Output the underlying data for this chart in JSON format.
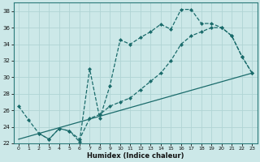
{
  "xlabel": "Humidex (Indice chaleur)",
  "background_color": "#cce8e8",
  "grid_color": "#b0d4d4",
  "line_color": "#1a6b6b",
  "xlim": [
    -0.5,
    23.5
  ],
  "ylim": [
    22,
    39
  ],
  "xticks": [
    0,
    1,
    2,
    3,
    4,
    5,
    6,
    7,
    8,
    9,
    10,
    11,
    12,
    13,
    14,
    15,
    16,
    17,
    18,
    19,
    20,
    21,
    22,
    23
  ],
  "yticks": [
    22,
    24,
    26,
    28,
    30,
    32,
    34,
    36,
    38
  ],
  "series1_x": [
    0,
    1,
    2,
    3,
    4,
    5,
    6,
    7,
    8,
    9,
    10,
    11,
    12,
    13,
    14,
    15,
    16,
    17,
    18,
    19,
    20,
    21,
    22,
    23
  ],
  "series1_y": [
    26.5,
    24.8,
    23.2,
    22.5,
    23.8,
    23.5,
    22.2,
    31.0,
    25.0,
    29.0,
    34.5,
    34.0,
    34.8,
    35.5,
    36.4,
    35.8,
    38.2,
    38.2,
    36.5,
    36.5,
    36.0,
    35.0,
    32.5,
    30.5
  ],
  "series2_x": [
    2,
    3,
    4,
    5,
    6,
    7,
    8,
    9,
    10,
    11,
    12,
    13,
    14,
    15,
    16,
    17,
    18,
    19,
    20,
    21,
    22,
    23
  ],
  "series2_y": [
    23.2,
    22.5,
    23.8,
    23.5,
    22.5,
    25.0,
    25.5,
    26.5,
    27.0,
    27.5,
    28.5,
    29.5,
    30.5,
    32.0,
    34.0,
    35.0,
    35.5,
    36.0,
    36.0,
    35.0,
    32.5,
    30.5
  ],
  "series3_x": [
    0,
    23
  ],
  "series3_y": [
    22.5,
    30.5
  ]
}
